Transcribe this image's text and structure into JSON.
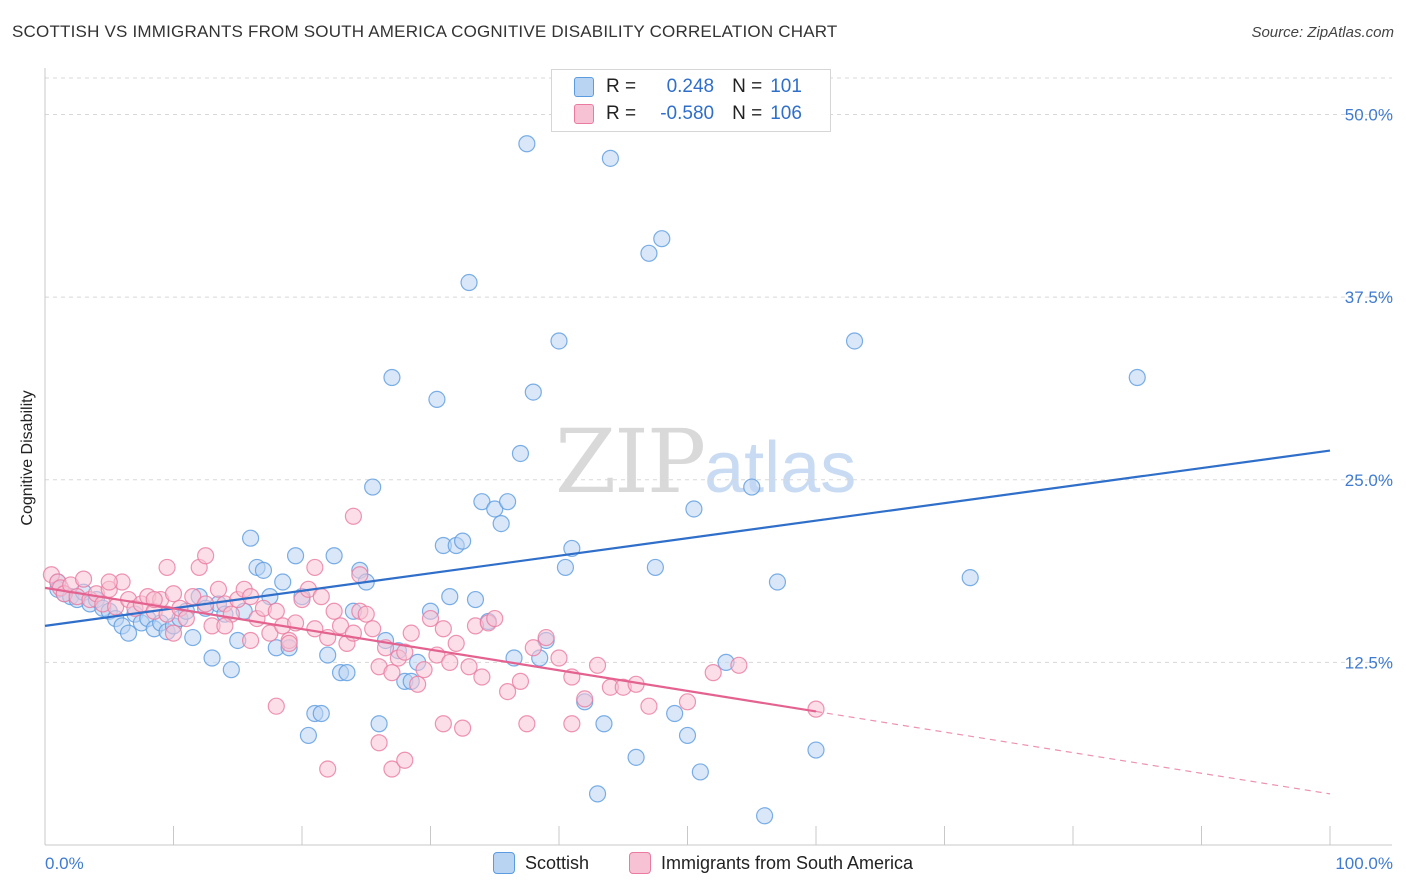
{
  "title": "SCOTTISH VS IMMIGRANTS FROM SOUTH AMERICA COGNITIVE DISABILITY CORRELATION CHART",
  "source": "Source: ZipAtlas.com",
  "watermark": {
    "zip": "ZIP",
    "atlas": "atlas"
  },
  "colors": {
    "blue": "#5b9be0",
    "blue_fill": "#b9d3f3",
    "blue_line": "#2f6fca",
    "pink": "#ea7aa0",
    "pink_fill": "#f7c2d4",
    "pink_line": "#e4628f",
    "axis_text": "#3f7bd0",
    "grid": "#d8d8d8"
  },
  "legend_top": {
    "r_label": "R =",
    "n_label": "N =",
    "blue": {
      "r": "0.248",
      "n": "101"
    },
    "pink": {
      "r": "-0.580",
      "n": "106"
    }
  },
  "chart_data": {
    "type": "scatter",
    "title": "SCOTTISH VS IMMIGRANTS FROM SOUTH AMERICA COGNITIVE DISABILITY CORRELATION CHART",
    "xlabel": "",
    "ylabel": "Cognitive Disability",
    "xlim": [
      0,
      100
    ],
    "ylim": [
      0,
      52.5
    ],
    "x_tick_labels": [
      "0.0%",
      "100.0%"
    ],
    "y_ticks": [
      12.5,
      25.0,
      37.5,
      50.0
    ],
    "y_tick_labels": [
      "12.5%",
      "25.0%",
      "37.5%",
      "50.0%"
    ],
    "grid": true,
    "legend_position": "bottom",
    "series": [
      {
        "name": "Scottish",
        "color": "#5b9be0",
        "regression": {
          "x": [
            0,
            100
          ],
          "y": [
            15.0,
            27.0
          ],
          "dashed_from": null
        },
        "points": [
          [
            1,
            18.0
          ],
          [
            1,
            17.5
          ],
          [
            1.5,
            17.2
          ],
          [
            2,
            17.0
          ],
          [
            2.5,
            16.8
          ],
          [
            3,
            17.3
          ],
          [
            3.5,
            16.5
          ],
          [
            4,
            16.8
          ],
          [
            4.5,
            16.2
          ],
          [
            5,
            16.0
          ],
          [
            5.5,
            15.5
          ],
          [
            6,
            15.0
          ],
          [
            6.5,
            14.5
          ],
          [
            7,
            15.8
          ],
          [
            7.5,
            15.2
          ],
          [
            8,
            15.5
          ],
          [
            8.5,
            14.8
          ],
          [
            9,
            15.2
          ],
          [
            9.5,
            14.6
          ],
          [
            10,
            15.0
          ],
          [
            10.5,
            15.5
          ],
          [
            11,
            16.0
          ],
          [
            11.5,
            14.2
          ],
          [
            12,
            17.0
          ],
          [
            12.5,
            16.2
          ],
          [
            13,
            12.8
          ],
          [
            13.5,
            16.5
          ],
          [
            14,
            15.8
          ],
          [
            14.5,
            12.0
          ],
          [
            15,
            14.0
          ],
          [
            15.5,
            16.0
          ],
          [
            16,
            21.0
          ],
          [
            16.5,
            19.0
          ],
          [
            17,
            18.8
          ],
          [
            17.5,
            17.0
          ],
          [
            18,
            13.5
          ],
          [
            18.5,
            18.0
          ],
          [
            19,
            13.5
          ],
          [
            19.5,
            19.8
          ],
          [
            20,
            17.0
          ],
          [
            20.5,
            7.5
          ],
          [
            21,
            9.0
          ],
          [
            21.5,
            9.0
          ],
          [
            22,
            13.0
          ],
          [
            22.5,
            19.8
          ],
          [
            23,
            11.8
          ],
          [
            23.5,
            11.8
          ],
          [
            24,
            16.0
          ],
          [
            24.5,
            18.8
          ],
          [
            25,
            18.0
          ],
          [
            25.5,
            24.5
          ],
          [
            26,
            8.3
          ],
          [
            26.5,
            14.0
          ],
          [
            27,
            32.0
          ],
          [
            27.5,
            13.3
          ],
          [
            28,
            11.2
          ],
          [
            28.5,
            11.2
          ],
          [
            29,
            12.5
          ],
          [
            30,
            16.0
          ],
          [
            30.5,
            30.5
          ],
          [
            31,
            20.5
          ],
          [
            31.5,
            17.0
          ],
          [
            32,
            20.5
          ],
          [
            32.5,
            20.8
          ],
          [
            33,
            38.5
          ],
          [
            33.5,
            16.8
          ],
          [
            34,
            23.5
          ],
          [
            34.5,
            15.3
          ],
          [
            35,
            23.0
          ],
          [
            35.5,
            22.0
          ],
          [
            36,
            23.5
          ],
          [
            36.5,
            12.8
          ],
          [
            37,
            26.8
          ],
          [
            37.5,
            48.0
          ],
          [
            38,
            31.0
          ],
          [
            38.5,
            12.8
          ],
          [
            39,
            14.0
          ],
          [
            40,
            34.5
          ],
          [
            40.5,
            19.0
          ],
          [
            41,
            20.3
          ],
          [
            42,
            9.8
          ],
          [
            43,
            3.5
          ],
          [
            43.5,
            8.3
          ],
          [
            44,
            47.0
          ],
          [
            46,
            6.0
          ],
          [
            47,
            40.5
          ],
          [
            47.5,
            19.0
          ],
          [
            48,
            41.5
          ],
          [
            49,
            9.0
          ],
          [
            50,
            7.5
          ],
          [
            50.5,
            23.0
          ],
          [
            51,
            5.0
          ],
          [
            53,
            12.5
          ],
          [
            55,
            24.5
          ],
          [
            56,
            2.0
          ],
          [
            57,
            18.0
          ],
          [
            60,
            6.5
          ],
          [
            63,
            34.5
          ],
          [
            72,
            18.3
          ],
          [
            85,
            32.0
          ],
          [
            53,
            50
          ]
        ]
      },
      {
        "name": "Immigrants from South America",
        "color": "#ea7aa0",
        "regression": {
          "x": [
            0,
            100
          ],
          "y": [
            17.6,
            3.5
          ],
          "dashed_from": 60
        },
        "points": [
          [
            0.5,
            18.5
          ],
          [
            1,
            18.0
          ],
          [
            1.2,
            17.6
          ],
          [
            1.5,
            17.2
          ],
          [
            2,
            17.8
          ],
          [
            2.5,
            17.0
          ],
          [
            3,
            18.2
          ],
          [
            3.5,
            16.8
          ],
          [
            4,
            17.2
          ],
          [
            4.5,
            16.5
          ],
          [
            5,
            17.5
          ],
          [
            5.5,
            16.3
          ],
          [
            6,
            18.0
          ],
          [
            6.5,
            16.8
          ],
          [
            7,
            16.2
          ],
          [
            7.5,
            16.5
          ],
          [
            8,
            17.0
          ],
          [
            8.5,
            16.0
          ],
          [
            9,
            16.8
          ],
          [
            9.5,
            15.8
          ],
          [
            10,
            17.2
          ],
          [
            10.5,
            16.2
          ],
          [
            11,
            15.5
          ],
          [
            11.5,
            17.0
          ],
          [
            12,
            19.0
          ],
          [
            12.5,
            16.5
          ],
          [
            13,
            15.0
          ],
          [
            13.5,
            17.5
          ],
          [
            14,
            16.5
          ],
          [
            14.5,
            15.8
          ],
          [
            15,
            16.8
          ],
          [
            15.5,
            17.5
          ],
          [
            16,
            17.0
          ],
          [
            16.5,
            15.5
          ],
          [
            17,
            16.2
          ],
          [
            17.5,
            14.5
          ],
          [
            18,
            16.0
          ],
          [
            18.5,
            15.0
          ],
          [
            19,
            14.0
          ],
          [
            19.5,
            15.2
          ],
          [
            20,
            16.8
          ],
          [
            20.5,
            17.5
          ],
          [
            21,
            14.8
          ],
          [
            21.5,
            17.0
          ],
          [
            22,
            14.2
          ],
          [
            22.5,
            16.0
          ],
          [
            23,
            15.0
          ],
          [
            23.5,
            13.8
          ],
          [
            24,
            14.5
          ],
          [
            24.5,
            16.0
          ],
          [
            25,
            15.8
          ],
          [
            25.5,
            14.8
          ],
          [
            26,
            12.2
          ],
          [
            26.5,
            13.5
          ],
          [
            27,
            11.8
          ],
          [
            27.5,
            12.8
          ],
          [
            28,
            13.2
          ],
          [
            28.5,
            14.5
          ],
          [
            29,
            11.0
          ],
          [
            29.5,
            12.0
          ],
          [
            30,
            15.5
          ],
          [
            30.5,
            13.0
          ],
          [
            31,
            14.8
          ],
          [
            31.5,
            12.5
          ],
          [
            32,
            13.8
          ],
          [
            32.5,
            8.0
          ],
          [
            33,
            12.2
          ],
          [
            33.5,
            15.0
          ],
          [
            34,
            11.5
          ],
          [
            34.5,
            15.2
          ],
          [
            35,
            15.5
          ],
          [
            36,
            10.5
          ],
          [
            37,
            11.2
          ],
          [
            37.5,
            8.3
          ],
          [
            38,
            13.5
          ],
          [
            39,
            14.2
          ],
          [
            40,
            12.8
          ],
          [
            41,
            11.5
          ],
          [
            42,
            10.0
          ],
          [
            43,
            12.3
          ],
          [
            44,
            10.8
          ],
          [
            45,
            10.8
          ],
          [
            46,
            11.0
          ],
          [
            47,
            9.5
          ],
          [
            50,
            9.8
          ],
          [
            52,
            11.8
          ],
          [
            54,
            12.3
          ],
          [
            60,
            9.3
          ],
          [
            18,
            9.5
          ],
          [
            22,
            5.2
          ],
          [
            26,
            7.0
          ],
          [
            27,
            5.2
          ],
          [
            28,
            5.8
          ],
          [
            24,
            22.5
          ],
          [
            12.5,
            19.8
          ],
          [
            9.5,
            19.0
          ],
          [
            21,
            19.0
          ],
          [
            24.5,
            18.5
          ],
          [
            5,
            18.0
          ],
          [
            14,
            15.0
          ],
          [
            10,
            14.5
          ],
          [
            16,
            14.0
          ],
          [
            19,
            13.8
          ],
          [
            31,
            8.3
          ],
          [
            41,
            8.3
          ],
          [
            8.5,
            16.8
          ]
        ]
      }
    ]
  }
}
